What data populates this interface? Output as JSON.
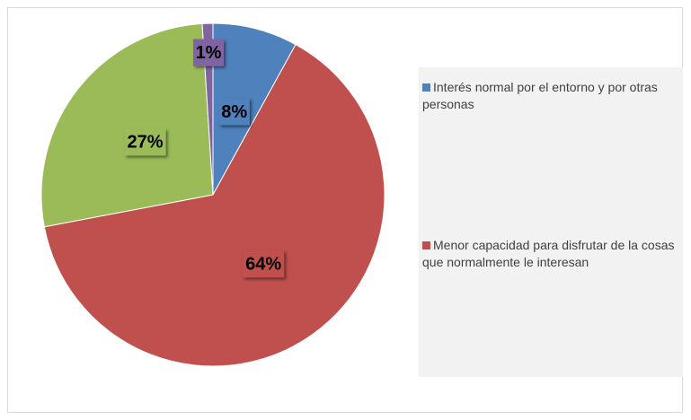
{
  "chart_data": {
    "type": "pie",
    "categories": [
      "Interés normal por el entorno y por otras personas",
      "Menor capacidad para disfrutar de la cosas que normalmente le interesan",
      null,
      null
    ],
    "values": [
      8,
      64,
      27,
      1
    ],
    "value_labels": [
      "8%",
      "64%",
      "27%",
      "1%"
    ],
    "colors": [
      "#4f81bd",
      "#c0504d",
      "#9bbb59",
      "#8064a2"
    ],
    "legend": "right"
  }
}
